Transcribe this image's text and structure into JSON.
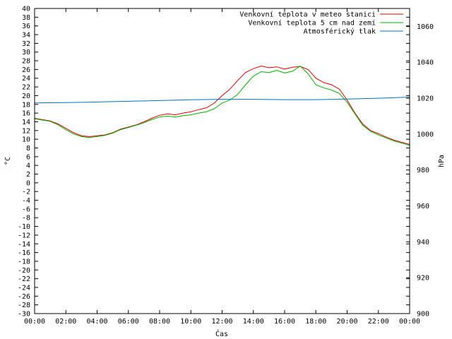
{
  "chart_data": {
    "type": "line",
    "title": "",
    "xlabel": "Čas",
    "ylabel": "°C",
    "y2label": "hPa",
    "x_ticks": [
      "00:00",
      "02:00",
      "04:00",
      "06:00",
      "08:00",
      "10:00",
      "12:00",
      "14:00",
      "16:00",
      "18:00",
      "20:00",
      "22:00",
      "00:00"
    ],
    "x_range_hours": [
      0,
      24
    ],
    "ylim": [
      -30,
      40
    ],
    "y_ticks": [
      40,
      38,
      36,
      34,
      32,
      30,
      28,
      26,
      24,
      22,
      20,
      18,
      16,
      14,
      12,
      10,
      8,
      6,
      4,
      2,
      0,
      -2,
      -4,
      -6,
      -8,
      -10,
      -12,
      -14,
      -16,
      -18,
      -20,
      -22,
      -24,
      -26,
      -28,
      -30
    ],
    "y2lim": [
      900,
      1070
    ],
    "y2_ticks": [
      1060,
      1040,
      1020,
      1000,
      980,
      960,
      940,
      920,
      900
    ],
    "legend_position": "top-right",
    "series": [
      {
        "name": "Venkovní teplota v meteo stanici",
        "color": "#e00000",
        "axis": "left",
        "x": [
          0,
          0.5,
          1,
          1.5,
          2,
          2.5,
          3,
          3.5,
          4,
          4.5,
          5,
          5.5,
          6,
          6.5,
          7,
          7.5,
          8,
          8.5,
          9,
          9.5,
          10,
          10.5,
          11,
          11.5,
          12,
          12.5,
          13,
          13.5,
          14,
          14.5,
          15,
          15.5,
          16,
          16.5,
          17,
          17.5,
          18,
          18.5,
          19,
          19.5,
          20,
          20.5,
          21,
          21.5,
          22,
          22.5,
          23,
          23.5,
          24
        ],
        "values": [
          14.8,
          14.5,
          14.2,
          13.5,
          12.5,
          11.5,
          10.8,
          10.6,
          10.8,
          11.0,
          11.5,
          12.3,
          12.8,
          13.3,
          14.0,
          14.8,
          15.5,
          15.8,
          15.6,
          16.0,
          16.3,
          16.8,
          17.2,
          18.3,
          20.0,
          21.5,
          23.5,
          25.3,
          26.2,
          26.8,
          26.4,
          26.6,
          26.1,
          26.5,
          26.7,
          26.0,
          24.0,
          23.0,
          22.5,
          21.5,
          19.0,
          16.0,
          13.5,
          12.0,
          11.3,
          10.5,
          9.8,
          9.3,
          8.8
        ]
      },
      {
        "name": "Venkovní teplota 5 cm nad zemí",
        "color": "#00b000",
        "axis": "left",
        "x": [
          0,
          0.5,
          1,
          1.5,
          2,
          2.5,
          3,
          3.5,
          4,
          4.5,
          5,
          5.5,
          6,
          6.5,
          7,
          7.5,
          8,
          8.5,
          9,
          9.5,
          10,
          10.5,
          11,
          11.5,
          12,
          12.5,
          13,
          13.5,
          14,
          14.5,
          15,
          15.5,
          16,
          16.5,
          17,
          17.5,
          18,
          18.5,
          19,
          19.5,
          20,
          20.5,
          21,
          21.5,
          22,
          22.5,
          23,
          23.5,
          24
        ],
        "values": [
          14.7,
          14.4,
          14.1,
          13.3,
          12.2,
          11.2,
          10.6,
          10.4,
          10.6,
          10.9,
          11.4,
          12.2,
          12.7,
          13.2,
          13.8,
          14.5,
          15.1,
          15.3,
          15.1,
          15.4,
          15.6,
          16.0,
          16.3,
          17.0,
          18.3,
          19.0,
          20.3,
          22.5,
          24.5,
          25.5,
          25.3,
          25.8,
          25.2,
          25.6,
          26.8,
          25.0,
          22.5,
          21.8,
          21.3,
          20.5,
          18.5,
          15.8,
          13.2,
          11.8,
          11.0,
          10.3,
          9.6,
          9.1,
          8.6
        ]
      },
      {
        "name": "Atmosférický tlak",
        "color": "#0072bd",
        "axis": "right",
        "x": [
          0,
          2,
          4,
          6,
          8,
          10,
          12,
          14,
          16,
          18,
          20,
          22,
          24
        ],
        "values": [
          1017.4,
          1017.6,
          1017.9,
          1018.3,
          1018.7,
          1019.1,
          1019.4,
          1019.4,
          1019.2,
          1019.2,
          1019.5,
          1020.0,
          1020.6
        ]
      }
    ]
  }
}
